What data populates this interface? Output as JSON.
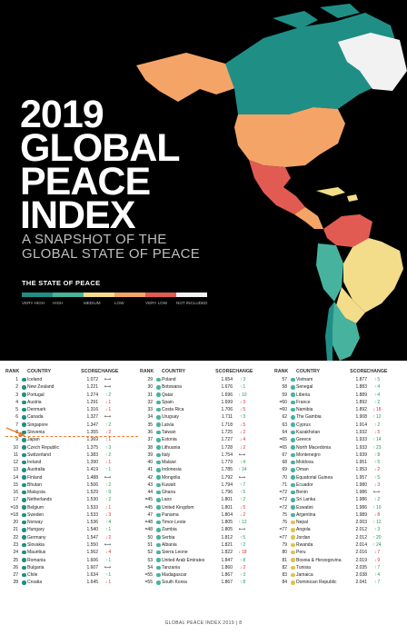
{
  "cover": {
    "title_lines": [
      "2019",
      "GLOBAL",
      "PEACE",
      "INDEX"
    ],
    "subtitle_lines": [
      "A SNAPSHOT OF THE",
      "GLOBAL STATE OF PEACE"
    ],
    "legend_title": "THE STATE OF PEACE",
    "legend": [
      {
        "label": "VERY HIGH",
        "color": "#1f8f86"
      },
      {
        "label": "HIGH",
        "color": "#47b39e"
      },
      {
        "label": "MEDIUM",
        "color": "#f3dc8a"
      },
      {
        "label": "LOW",
        "color": "#f5a467"
      },
      {
        "label": "VERY LOW",
        "color": "#e25b53"
      },
      {
        "label": "NOT INCLUDED",
        "color": "#f2f2f2"
      }
    ]
  },
  "table": {
    "headers": {
      "rank": "RANK",
      "country": "COUNTRY",
      "score": "SCORE",
      "change": "CHANGE"
    },
    "columns": [
      [
        {
          "rank": "1",
          "country": "Iceland",
          "score": "1.072",
          "change": "",
          "dir": "flat",
          "level": "vh"
        },
        {
          "rank": "2",
          "country": "New Zealand",
          "score": "1.221",
          "change": "",
          "dir": "flat",
          "level": "vh"
        },
        {
          "rank": "3",
          "country": "Portugal",
          "score": "1.274",
          "change": "2",
          "dir": "up",
          "level": "vh"
        },
        {
          "rank": "4",
          "country": "Austria",
          "score": "1.291",
          "change": "1",
          "dir": "down",
          "level": "vh"
        },
        {
          "rank": "5",
          "country": "Denmark",
          "score": "1.316",
          "change": "1",
          "dir": "down",
          "level": "vh"
        },
        {
          "rank": "6",
          "country": "Canada",
          "score": "1.327",
          "change": "",
          "dir": "flat",
          "level": "vh"
        },
        {
          "rank": "7",
          "country": "Singapore",
          "score": "1.347",
          "change": "2",
          "dir": "up",
          "level": "vh"
        },
        {
          "rank": "8",
          "country": "Slovenia",
          "score": "1.355",
          "change": "2",
          "dir": "down",
          "level": "vh"
        },
        {
          "rank": "9",
          "country": "Japan",
          "score": "1.369",
          "change": "1",
          "dir": "down",
          "level": "vh"
        },
        {
          "rank": "10",
          "country": "Czech Republic",
          "score": "1.375",
          "change": "3",
          "dir": "up",
          "level": "vh"
        },
        {
          "rank": "11",
          "country": "Switzerland",
          "score": "1.383",
          "change": "2",
          "dir": "up",
          "level": "vh"
        },
        {
          "rank": "12",
          "country": "Ireland",
          "score": "1.390",
          "change": "1",
          "dir": "down",
          "level": "vh"
        },
        {
          "rank": "13",
          "country": "Australia",
          "score": "1.419",
          "change": "1",
          "dir": "up",
          "level": "vh"
        },
        {
          "rank": "14",
          "country": "Finland",
          "score": "1.488",
          "change": "",
          "dir": "flat",
          "level": "vh"
        },
        {
          "rank": "15",
          "country": "Bhutan",
          "score": "1.506",
          "change": "2",
          "dir": "up",
          "level": "vh"
        },
        {
          "rank": "16",
          "country": "Malaysia",
          "score": "1.529",
          "change": "9",
          "dir": "up",
          "level": "vh"
        },
        {
          "rank": "17",
          "country": "Netherlands",
          "score": "1.530",
          "change": "2",
          "dir": "up",
          "level": "vh"
        },
        {
          "rank": "=18",
          "country": "Belgium",
          "score": "1.533",
          "change": "1",
          "dir": "down",
          "level": "vh"
        },
        {
          "rank": "=18",
          "country": "Sweden",
          "score": "1.533",
          "change": "3",
          "dir": "down",
          "level": "vh"
        },
        {
          "rank": "20",
          "country": "Norway",
          "score": "1.536",
          "change": "4",
          "dir": "up",
          "level": "vh"
        },
        {
          "rank": "21",
          "country": "Hungary",
          "score": "1.540",
          "change": "1",
          "dir": "up",
          "level": "vh"
        },
        {
          "rank": "22",
          "country": "Germany",
          "score": "1.547",
          "change": "2",
          "dir": "down",
          "level": "vh"
        },
        {
          "rank": "23",
          "country": "Slovakia",
          "score": "1.550",
          "change": "",
          "dir": "flat",
          "level": "vh"
        },
        {
          "rank": "24",
          "country": "Mauritius",
          "score": "1.562",
          "change": "4",
          "dir": "down",
          "level": "vh"
        },
        {
          "rank": "25",
          "country": "Romania",
          "score": "1.606",
          "change": "1",
          "dir": "up",
          "level": "vh"
        },
        {
          "rank": "26",
          "country": "Bulgaria",
          "score": "1.607",
          "change": "",
          "dir": "flat",
          "level": "vh"
        },
        {
          "rank": "27",
          "country": "Chile",
          "score": "1.634",
          "change": "1",
          "dir": "up",
          "level": "vh"
        },
        {
          "rank": "28",
          "country": "Croatia",
          "score": "1.645",
          "change": "1",
          "dir": "down",
          "level": "vh"
        }
      ],
      [
        {
          "rank": "29",
          "country": "Poland",
          "score": "1.654",
          "change": "3",
          "dir": "up",
          "level": "h"
        },
        {
          "rank": "30",
          "country": "Botswana",
          "score": "1.676",
          "change": "1",
          "dir": "up",
          "level": "h"
        },
        {
          "rank": "31",
          "country": "Qatar",
          "score": "1.696",
          "change": "10",
          "dir": "up",
          "level": "h"
        },
        {
          "rank": "32",
          "country": "Spain",
          "score": "1.699",
          "change": "3",
          "dir": "down",
          "level": "h"
        },
        {
          "rank": "33",
          "country": "Costa Rica",
          "score": "1.706",
          "change": "5",
          "dir": "down",
          "level": "h"
        },
        {
          "rank": "34",
          "country": "Uruguay",
          "score": "1.711",
          "change": "3",
          "dir": "up",
          "level": "h"
        },
        {
          "rank": "35",
          "country": "Latvia",
          "score": "1.718",
          "change": "5",
          "dir": "down",
          "level": "h"
        },
        {
          "rank": "36",
          "country": "Taiwan",
          "score": "1.725",
          "change": "2",
          "dir": "down",
          "level": "h"
        },
        {
          "rank": "37",
          "country": "Estonia",
          "score": "1.727",
          "change": "4",
          "dir": "down",
          "level": "h"
        },
        {
          "rank": "38",
          "country": "Lithuania",
          "score": "1.728",
          "change": "2",
          "dir": "down",
          "level": "h"
        },
        {
          "rank": "39",
          "country": "Italy",
          "score": "1.754",
          "change": "",
          "dir": "flat",
          "level": "h"
        },
        {
          "rank": "40",
          "country": "Malawi",
          "score": "1.779",
          "change": "4",
          "dir": "up",
          "level": "h"
        },
        {
          "rank": "41",
          "country": "Indonesia",
          "score": "1.785",
          "change": "14",
          "dir": "up",
          "level": "h"
        },
        {
          "rank": "42",
          "country": "Mongolia",
          "score": "1.792",
          "change": "",
          "dir": "flat",
          "level": "h"
        },
        {
          "rank": "43",
          "country": "Kuwait",
          "score": "1.794",
          "change": "7",
          "dir": "up",
          "level": "h"
        },
        {
          "rank": "44",
          "country": "Ghana",
          "score": "1.796",
          "change": "5",
          "dir": "up",
          "level": "h"
        },
        {
          "rank": "=45",
          "country": "Laos",
          "score": "1.801",
          "change": "2",
          "dir": "up",
          "level": "h"
        },
        {
          "rank": "=45",
          "country": "United Kingdom",
          "score": "1.801",
          "change": "5",
          "dir": "down",
          "level": "h"
        },
        {
          "rank": "47",
          "country": "Panama",
          "score": "1.804",
          "change": "2",
          "dir": "down",
          "level": "h"
        },
        {
          "rank": "=48",
          "country": "Timor-Leste",
          "score": "1.805",
          "change": "12",
          "dir": "up",
          "level": "h"
        },
        {
          "rank": "=48",
          "country": "Zambia",
          "score": "1.805",
          "change": "",
          "dir": "flat",
          "level": "h"
        },
        {
          "rank": "50",
          "country": "Serbia",
          "score": "1.812",
          "change": "5",
          "dir": "up",
          "level": "h"
        },
        {
          "rank": "51",
          "country": "Albania",
          "score": "1.821",
          "change": "2",
          "dir": "up",
          "level": "h"
        },
        {
          "rank": "52",
          "country": "Sierra Leone",
          "score": "1.822",
          "change": "18",
          "dir": "down",
          "level": "h"
        },
        {
          "rank": "53",
          "country": "United Arab Emirates",
          "score": "1.847",
          "change": "8",
          "dir": "up",
          "level": "h"
        },
        {
          "rank": "54",
          "country": "Tanzania",
          "score": "1.860",
          "change": "2",
          "dir": "down",
          "level": "h"
        },
        {
          "rank": "=55",
          "country": "Madagascar",
          "score": "1.867",
          "change": "3",
          "dir": "up",
          "level": "h"
        },
        {
          "rank": "=55",
          "country": "South Korea",
          "score": "1.867",
          "change": "8",
          "dir": "up",
          "level": "h"
        }
      ],
      [
        {
          "rank": "57",
          "country": "Vietnam",
          "score": "1.877",
          "change": "5",
          "dir": "up",
          "level": "h"
        },
        {
          "rank": "58",
          "country": "Senegal",
          "score": "1.883",
          "change": "4",
          "dir": "up",
          "level": "h"
        },
        {
          "rank": "59",
          "country": "Liberia",
          "score": "1.889",
          "change": "4",
          "dir": "up",
          "level": "h"
        },
        {
          "rank": "=60",
          "country": "France",
          "score": "1.892",
          "change": "2",
          "dir": "up",
          "level": "h"
        },
        {
          "rank": "=60",
          "country": "Namibia",
          "score": "1.892",
          "change": "18",
          "dir": "down",
          "level": "h"
        },
        {
          "rank": "62",
          "country": "The Gambia",
          "score": "1.908",
          "change": "12",
          "dir": "up",
          "level": "h"
        },
        {
          "rank": "63",
          "country": "Cyprus",
          "score": "1.914",
          "change": "2",
          "dir": "up",
          "level": "h"
        },
        {
          "rank": "64",
          "country": "Kazakhstan",
          "score": "1.932",
          "change": "5",
          "dir": "down",
          "level": "h"
        },
        {
          "rank": "=65",
          "country": "Greece",
          "score": "1.933",
          "change": "14",
          "dir": "up",
          "level": "h"
        },
        {
          "rank": "=65",
          "country": "North Macedonia",
          "score": "1.933",
          "change": "23",
          "dir": "up",
          "level": "h"
        },
        {
          "rank": "67",
          "country": "Montenegro",
          "score": "1.939",
          "change": "8",
          "dir": "up",
          "level": "h"
        },
        {
          "rank": "68",
          "country": "Moldova",
          "score": "1.951",
          "change": "5",
          "dir": "up",
          "level": "h"
        },
        {
          "rank": "69",
          "country": "Oman",
          "score": "1.953",
          "change": "2",
          "dir": "down",
          "level": "h"
        },
        {
          "rank": "70",
          "country": "Equatorial Guinea",
          "score": "1.957",
          "change": "5",
          "dir": "up",
          "level": "h"
        },
        {
          "rank": "71",
          "country": "Ecuador",
          "score": "1.980",
          "change": "3",
          "dir": "down",
          "level": "h"
        },
        {
          "rank": "=72",
          "country": "Benin",
          "score": "1.986",
          "change": "",
          "dir": "flat",
          "level": "h"
        },
        {
          "rank": "=72",
          "country": "Sri Lanka",
          "score": "1.986",
          "change": "2",
          "dir": "up",
          "level": "h"
        },
        {
          "rank": "=72",
          "country": "Eswatini",
          "score": "1.986",
          "change": "10",
          "dir": "up",
          "level": "h"
        },
        {
          "rank": "75",
          "country": "Argentina",
          "score": "1.989",
          "change": "8",
          "dir": "down",
          "level": "h"
        },
        {
          "rank": "76",
          "country": "Nepal",
          "score": "2.003",
          "change": "12",
          "dir": "up",
          "level": "m"
        },
        {
          "rank": "=77",
          "country": "Angola",
          "score": "2.012",
          "change": "3",
          "dir": "up",
          "level": "m"
        },
        {
          "rank": "=77",
          "country": "Jordan",
          "score": "2.012",
          "change": "20",
          "dir": "up",
          "level": "m"
        },
        {
          "rank": "79",
          "country": "Rwanda",
          "score": "2.014",
          "change": "24",
          "dir": "up",
          "level": "m"
        },
        {
          "rank": "80",
          "country": "Peru",
          "score": "2.016",
          "change": "7",
          "dir": "down",
          "level": "m"
        },
        {
          "rank": "81",
          "country": "Bosnia & Herzegovina",
          "score": "2.019",
          "change": "9",
          "dir": "down",
          "level": "m"
        },
        {
          "rank": "82",
          "country": "Tunisia",
          "score": "2.035",
          "change": "7",
          "dir": "up",
          "level": "m"
        },
        {
          "rank": "83",
          "country": "Jamaica",
          "score": "2.038",
          "change": "4",
          "dir": "up",
          "level": "m"
        },
        {
          "rank": "84",
          "country": "Dominican Republic",
          "score": "2.041",
          "change": "7",
          "dir": "up",
          "level": "m"
        }
      ]
    ]
  },
  "footer": "GLOBAL PEACE INDEX 2019 |  8"
}
